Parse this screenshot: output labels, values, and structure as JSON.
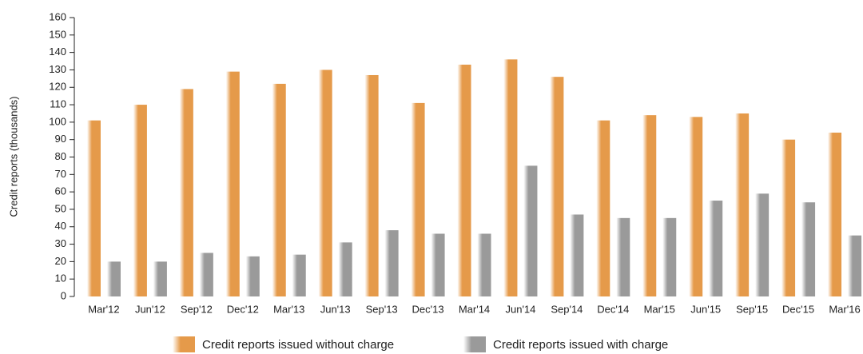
{
  "chart_data": {
    "type": "bar",
    "y_label": "Credit reports (thousands)",
    "categories": [
      "Mar'12",
      "Jun'12",
      "Sep'12",
      "Dec'12",
      "Mar'13",
      "Jun'13",
      "Sep'13",
      "Dec'13",
      "Mar'14",
      "Jun'14",
      "Sep'14",
      "Dec'14",
      "Mar'15",
      "Jun'15",
      "Sep'15",
      "Dec'15",
      "Mar'16"
    ],
    "series": [
      {
        "name": "Credit reports issued without charge",
        "color": "#e59a4a",
        "values": [
          101,
          110,
          119,
          129,
          122,
          130,
          127,
          111,
          133,
          136,
          126,
          101,
          104,
          103,
          105,
          90,
          94
        ]
      },
      {
        "name": "Credit reports issued with charge",
        "color": "#9a9a9a",
        "values": [
          20,
          20,
          25,
          23,
          24,
          31,
          38,
          36,
          36,
          75,
          47,
          45,
          45,
          55,
          59,
          54,
          35
        ]
      }
    ],
    "ylim": [
      0,
      160
    ],
    "yticks": [
      0,
      10,
      20,
      30,
      40,
      50,
      60,
      70,
      80,
      90,
      100,
      110,
      120,
      130,
      140,
      150,
      160
    ],
    "grid": false
  }
}
